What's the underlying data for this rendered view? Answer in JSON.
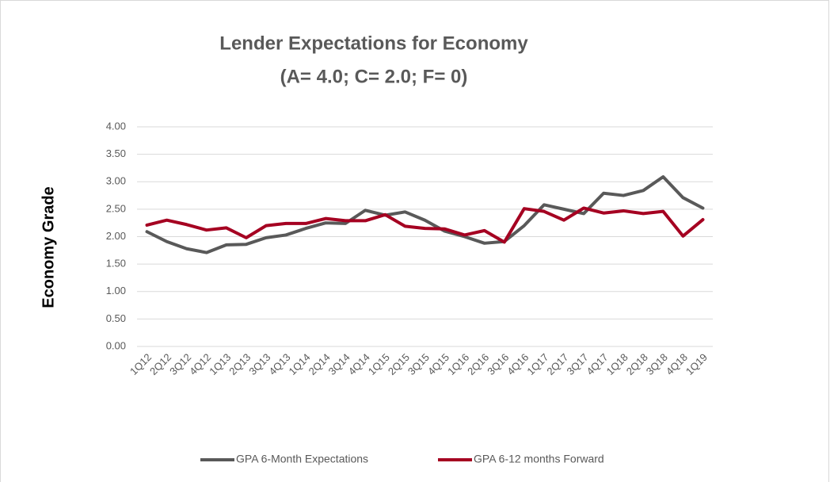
{
  "chart_data": {
    "type": "line",
    "title": [
      "Lender Expectations for Economy",
      "(A= 4.0; C= 2.0; F= 0)"
    ],
    "y_label": "Economy Grade",
    "categories": [
      "1Q12",
      "2Q12",
      "3Q12",
      "4Q12",
      "1Q13",
      "2Q13",
      "3Q13",
      "4Q13",
      "1Q14",
      "2Q14",
      "3Q14",
      "4Q14",
      "1Q15",
      "2Q15",
      "3Q15",
      "4Q15",
      "1Q16",
      "2Q16",
      "3Q16",
      "4Q16",
      "1Q17",
      "2Q17",
      "3Q17",
      "4Q17",
      "1Q18",
      "2Q18",
      "3Q18",
      "4Q18",
      "1Q19"
    ],
    "series": [
      {
        "name": "GPA 6-Month Expectations",
        "color": "#595959",
        "values": [
          2.09,
          1.91,
          1.78,
          1.71,
          1.85,
          1.86,
          1.98,
          2.03,
          2.15,
          2.25,
          2.24,
          2.48,
          2.39,
          2.45,
          2.3,
          2.1,
          2.0,
          1.88,
          1.91,
          2.2,
          2.58,
          2.5,
          2.42,
          2.79,
          2.75,
          2.84,
          3.09,
          2.71,
          2.52
        ]
      },
      {
        "name": "GPA 6-12 months Forward",
        "color": "#a50021",
        "values": [
          2.21,
          2.3,
          2.22,
          2.12,
          2.16,
          1.98,
          2.2,
          2.24,
          2.24,
          2.33,
          2.29,
          2.29,
          2.4,
          2.19,
          2.15,
          2.14,
          2.03,
          2.11,
          1.9,
          2.51,
          2.46,
          2.3,
          2.52,
          2.43,
          2.47,
          2.42,
          2.46,
          2.01,
          2.31
        ]
      }
    ],
    "ylim": [
      0,
      4
    ],
    "yticks": [
      {
        "value": 0,
        "label": "0.00"
      },
      {
        "value": 0.5,
        "label": "0.50"
      },
      {
        "value": 1,
        "label": "1.00"
      },
      {
        "value": 1.5,
        "label": "1.50"
      },
      {
        "value": 2,
        "label": "2.00"
      },
      {
        "value": 2.5,
        "label": "2.50"
      },
      {
        "value": 3,
        "label": "3.00"
      },
      {
        "value": 3.5,
        "label": "3.50"
      },
      {
        "value": 4,
        "label": "4.00"
      }
    ],
    "grid": true,
    "legend": "bottom"
  }
}
